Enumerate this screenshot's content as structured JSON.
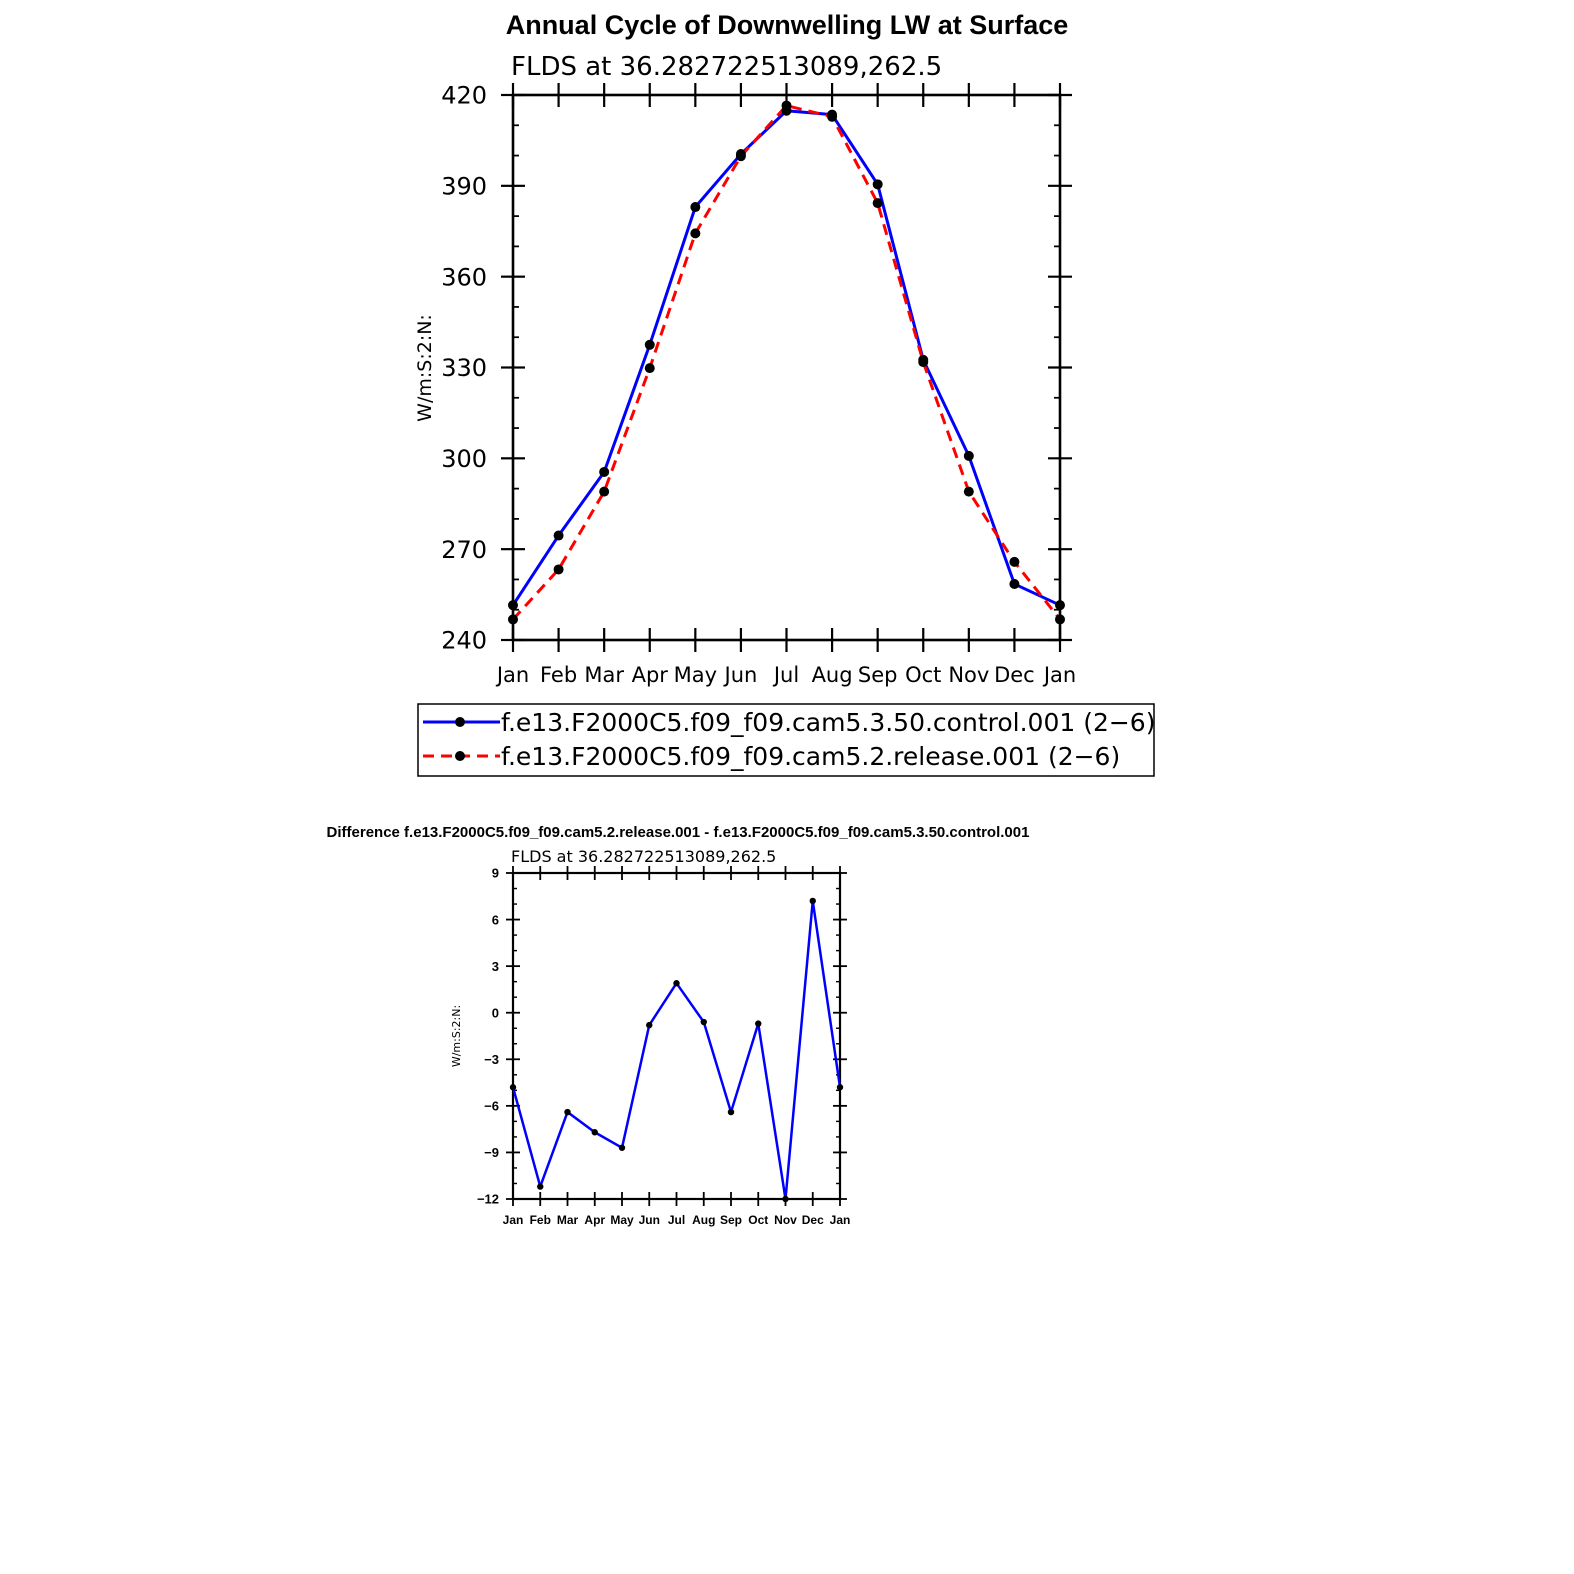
{
  "chart_data": [
    {
      "type": "line",
      "title": "Annual Cycle of Downwelling LW at Surface",
      "subtitle": "FLDS at 36.282722513089,262.5",
      "ylabel": "W/m:S:2:N:",
      "xlabel": "",
      "categories": [
        "Jan",
        "Feb",
        "Mar",
        "Apr",
        "May",
        "Jun",
        "Jul",
        "Aug",
        "Sep",
        "Oct",
        "Nov",
        "Dec",
        "Jan"
      ],
      "ylim": [
        240,
        420
      ],
      "yticks": [
        240,
        270,
        300,
        330,
        360,
        390,
        420
      ],
      "ytick_labels": [
        "240",
        "270",
        "300",
        "330",
        "360",
        "390",
        "420"
      ],
      "grid": false,
      "legend_position": "bottom",
      "series": [
        {
          "name": "f.e13.F2000C5.f09_f09.cam5.3.50.control.001 (2−6)",
          "color": "#0000ff",
          "dash": "solid",
          "values": [
            251.5,
            274.5,
            295.5,
            337.5,
            383.0,
            400.5,
            414.8,
            413.5,
            390.5,
            332.5,
            300.8,
            258.5,
            251.5
          ]
        },
        {
          "name": "f.e13.F2000C5.f09_f09.cam5.2.release.001 (2−6)",
          "color": "#ff0000",
          "dash": "dashed",
          "values": [
            246.8,
            263.3,
            289.0,
            329.8,
            374.3,
            399.8,
            416.5,
            412.8,
            384.3,
            331.8,
            289.0,
            265.8,
            246.8
          ]
        }
      ]
    },
    {
      "type": "line",
      "title": "Difference f.e13.F2000C5.f09_f09.cam5.2.release.001 - f.e13.F2000C5.f09_f09.cam5.3.50.control.001",
      "subtitle": "FLDS at 36.282722513089,262.5",
      "ylabel": "W/m:S:2:N:",
      "xlabel": "",
      "categories": [
        "Jan",
        "Feb",
        "Mar",
        "Apr",
        "May",
        "Jun",
        "Jul",
        "Aug",
        "Sep",
        "Oct",
        "Nov",
        "Dec",
        "Jan"
      ],
      "ylim": [
        -12,
        9
      ],
      "yticks": [
        -12,
        -9,
        -6,
        -3,
        0,
        3,
        6,
        9
      ],
      "ytick_labels": [
        "−12",
        "−9",
        "−6",
        "−3",
        "0",
        "3",
        "6",
        "9"
      ],
      "grid": false,
      "series": [
        {
          "color": "#0000ff",
          "dash": "solid",
          "values": [
            -4.8,
            -11.2,
            -6.4,
            -7.7,
            -8.7,
            -0.8,
            1.9,
            -0.6,
            -6.4,
            -0.7,
            -12.0,
            7.2,
            -4.8
          ]
        }
      ]
    }
  ]
}
